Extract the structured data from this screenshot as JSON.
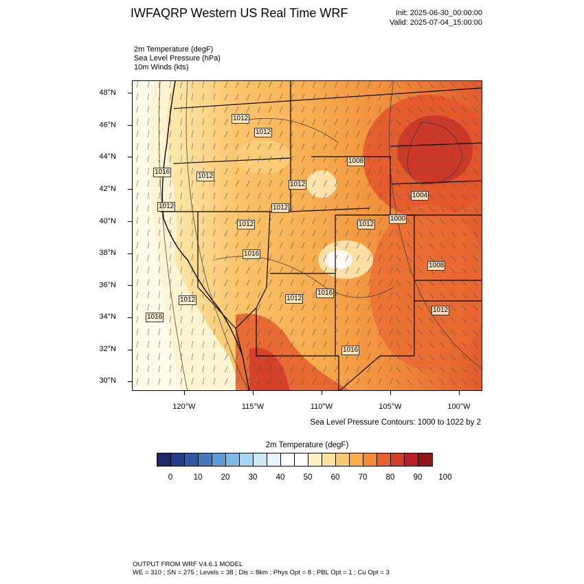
{
  "header": {
    "title": "IWFAQRP Western US Real Time WRF",
    "init": "Init: 2025-06-30_00:00:00",
    "valid": "Valid: 2025-07-04_15:00:00"
  },
  "fields": [
    "2m Temperature   (degF)",
    "Sea Level Pressure   (hPa)",
    "10m Winds   (kts)"
  ],
  "axes": {
    "lat_labels": [
      "48°N",
      "46°N",
      "44°N",
      "42°N",
      "40°N",
      "38°N",
      "36°N",
      "34°N",
      "32°N",
      "30°N"
    ],
    "lon_labels": [
      "120°W",
      "115°W",
      "110°W",
      "105°W",
      "100°W"
    ]
  },
  "isobar_labels": [
    "1012",
    "1012",
    "1016",
    "1012",
    "1012",
    "1008",
    "1012",
    "1004",
    "1000",
    "1012",
    "1012",
    "1012",
    "1008",
    "1016",
    "1012",
    "1012",
    "1016",
    "1016",
    "1012",
    "1016"
  ],
  "contour_note": "Sea Level Pressure Contours: 1000 to 1022 by 2",
  "colorbar": {
    "title": "2m Temperature  (degF)",
    "colors": [
      "#1b2a66",
      "#213f8c",
      "#2c5aa8",
      "#4579bd",
      "#5d9bd3",
      "#7dbbe6",
      "#a5d7f2",
      "#cde9f7",
      "#e8f4fb",
      "#ffffff",
      "#ffffff",
      "#fff0c0",
      "#fde09a",
      "#fcc86f",
      "#f9ad4e",
      "#f38a38",
      "#e6612f",
      "#d23d2a",
      "#b92027",
      "#8e1618"
    ],
    "labels": [
      "0",
      "10",
      "20",
      "30",
      "40",
      "50",
      "60",
      "70",
      "80",
      "90",
      "100"
    ]
  },
  "footer": {
    "line1": "OUTPUT FROM WRF V4.6.1 MODEL",
    "line2": "WE = 310 ; SN = 275 ; Levels = 38 ; Dis = 8km ; Phys Opt = 8 ; PBL Opt = 1 ; Cu Opt = 3"
  }
}
